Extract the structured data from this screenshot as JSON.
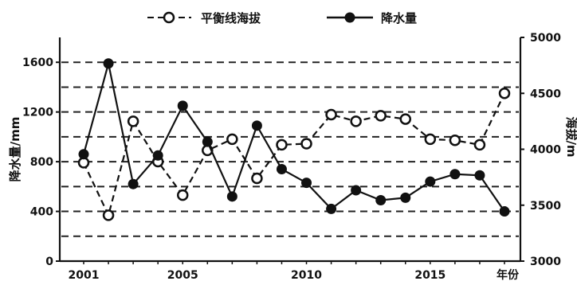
{
  "chart_data": {
    "type": "line",
    "title": "",
    "xlabel": "年份",
    "ylabel_left": "降水量/mm",
    "ylabel_right": "海拔/m",
    "x": [
      2001,
      2002,
      2003,
      2004,
      2005,
      2006,
      2007,
      2008,
      2009,
      2010,
      2011,
      2012,
      2013,
      2014,
      2015,
      2016,
      2017,
      2018
    ],
    "x_tick_labels": [
      "2001",
      "2005",
      "2010",
      "2015"
    ],
    "y_left_lim": [
      0,
      1800
    ],
    "y_left_ticks": [
      "0",
      "400",
      "800",
      "1200",
      "1600"
    ],
    "y_right_lim": [
      3000,
      5000
    ],
    "y_right_ticks": [
      "3000",
      "3500",
      "4000",
      "4500",
      "5000"
    ],
    "gridlines": "dashed horizontal",
    "legend_position": "top",
    "series": [
      {
        "name": "平衡线海拔",
        "axis": "right",
        "marker": "open-circle",
        "line": "dashed",
        "values": [
          3880,
          3410,
          4250,
          3890,
          3590,
          3990,
          4090,
          3740,
          4040,
          4050,
          4310,
          4250,
          4300,
          4270,
          4090,
          4080,
          4040,
          4500
        ]
      },
      {
        "name": "降水量",
        "axis": "left",
        "marker": "filled-circle",
        "line": "solid",
        "values": [
          860,
          1590,
          620,
          850,
          1250,
          960,
          520,
          1090,
          740,
          630,
          420,
          570,
          490,
          510,
          640,
          700,
          690,
          400
        ]
      }
    ]
  }
}
